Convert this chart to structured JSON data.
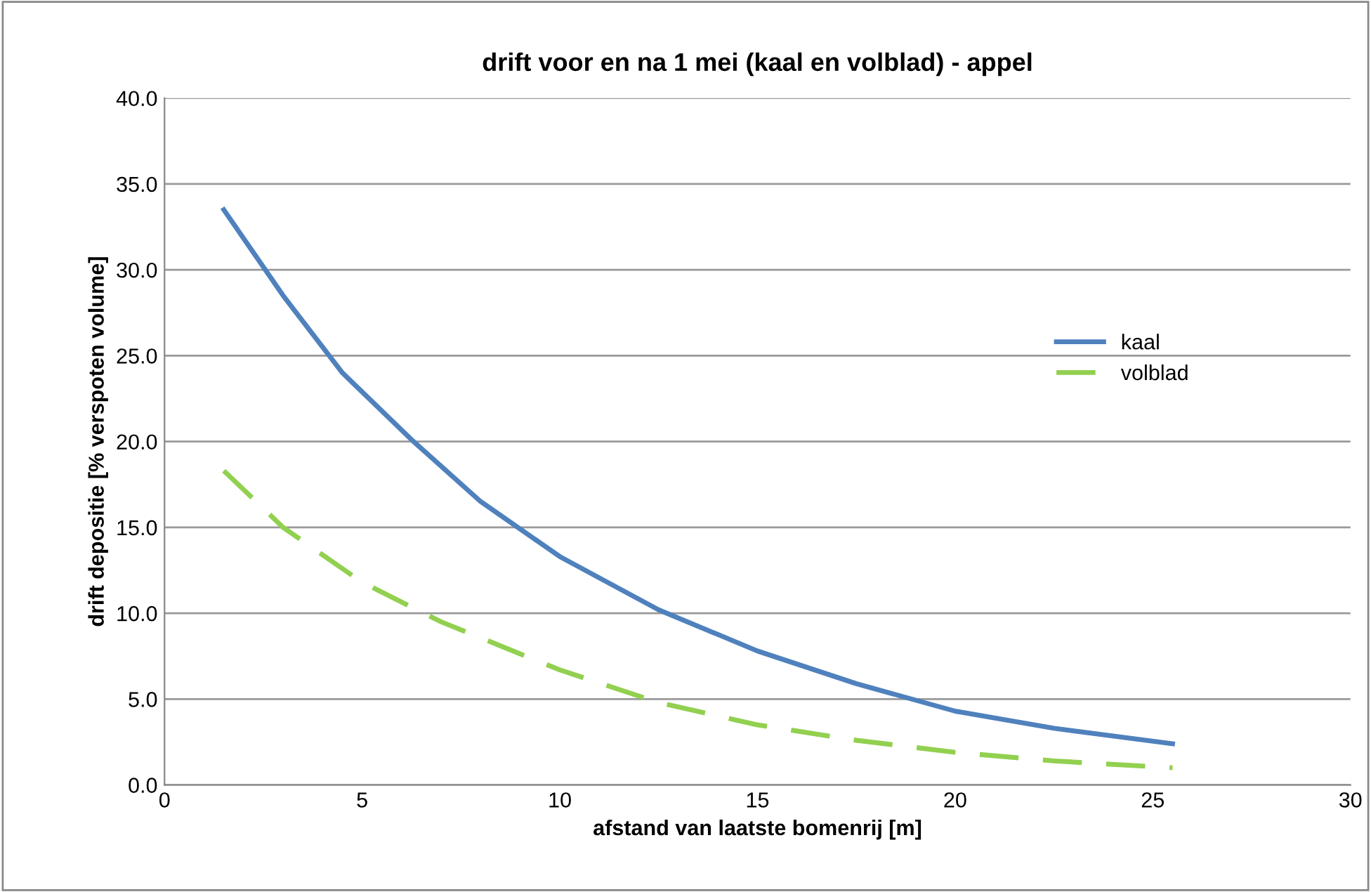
{
  "chart_data": {
    "type": "line",
    "title": "drift voor en na 1 mei (kaal en volblad) - appel",
    "xlabel": "afstand van laatste bomenrij [m]",
    "ylabel": "drift depositie [% verspoten volume]",
    "xlim": [
      0,
      30
    ],
    "xticks": [
      0,
      5,
      10,
      15,
      20,
      25,
      30
    ],
    "ylim": [
      0,
      40
    ],
    "yticks": [
      {
        "value": 0,
        "label": "0.0"
      },
      {
        "value": 5,
        "label": "5.0"
      },
      {
        "value": 10,
        "label": "10.0"
      },
      {
        "value": 15,
        "label": "15.0"
      },
      {
        "value": 20,
        "label": "20.0"
      },
      {
        "value": 25,
        "label": "25.0"
      },
      {
        "value": 30,
        "label": "30.0"
      },
      {
        "value": 35,
        "label": "35.0"
      },
      {
        "value": 40,
        "label": "40.0"
      }
    ],
    "grid": "y",
    "legend": "right",
    "marker": "none",
    "series": [
      {
        "name": "kaal",
        "color": "#4f81bd",
        "line_style": "solid",
        "x": [
          1.5,
          3,
          4.5,
          6.3,
          8,
          10,
          12.5,
          15,
          17.5,
          20,
          22.5,
          25.5
        ],
        "values": [
          33.5,
          28.5,
          24,
          20,
          16.5,
          13.3,
          10.2,
          7.8,
          5.9,
          4.3,
          3.3,
          2.4
        ]
      },
      {
        "name": "volblad",
        "color": "#92d050",
        "line_style": "dashed",
        "x": [
          1.5,
          3,
          5,
          7,
          10,
          12.5,
          15,
          17.5,
          20,
          22.5,
          25.5
        ],
        "values": [
          18.3,
          15,
          11.8,
          9.5,
          6.7,
          4.8,
          3.5,
          2.6,
          1.9,
          1.4,
          1.0
        ]
      }
    ]
  }
}
